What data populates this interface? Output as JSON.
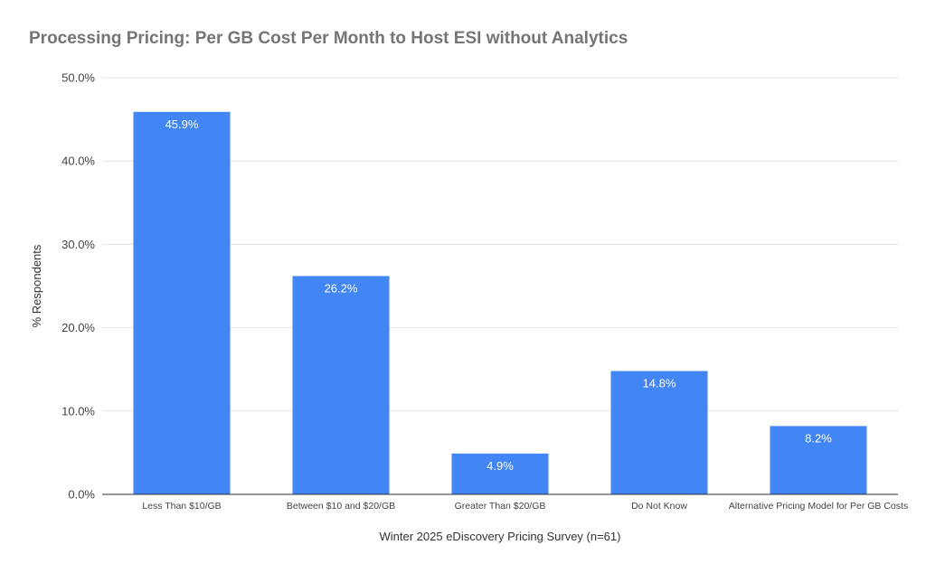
{
  "chart_data": {
    "type": "bar",
    "title": "Processing Pricing: Per GB Cost Per Month to Host ESI without Analytics",
    "xlabel": "Winter 2025 eDiscovery Pricing Survey (n=61)",
    "ylabel": "% Respondents",
    "categories": [
      "Less Than $10/GB",
      "Between $10 and $20/GB",
      "Greater Than $20/GB",
      "Do Not Know",
      "Alternative Pricing Model for Per GB Costs"
    ],
    "values": [
      45.9,
      26.2,
      4.9,
      14.8,
      8.2
    ],
    "data_labels": [
      "45.9%",
      "26.2%",
      "4.9%",
      "14.8%",
      "8.2%"
    ],
    "ylim": [
      0,
      50
    ],
    "y_ticks": [
      0,
      10,
      20,
      30,
      40,
      50
    ],
    "y_tick_labels": [
      "0.0%",
      "10.0%",
      "20.0%",
      "30.0%",
      "40.0%",
      "50.0%"
    ],
    "grid": true,
    "legend": "none",
    "bar_color": "#4285f4",
    "label_color": "#ffffff",
    "title_color": "#757575"
  }
}
